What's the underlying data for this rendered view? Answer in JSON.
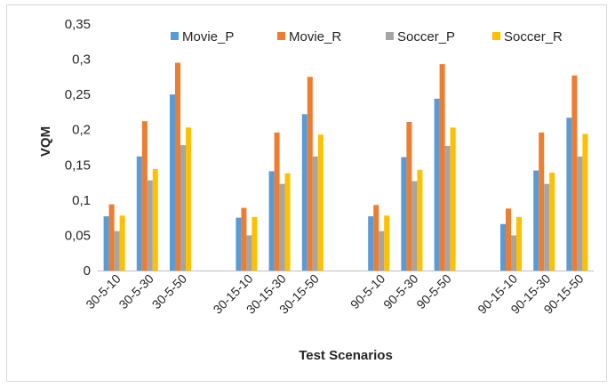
{
  "chart_data": {
    "type": "bar",
    "title": "",
    "xlabel": "Test Scenarios",
    "ylabel": "VQM",
    "ylim": [
      0,
      0.35
    ],
    "yticks": [
      "0",
      "0,05",
      "0,1",
      "0,15",
      "0,2",
      "0,25",
      "0,3",
      "0,35"
    ],
    "grid": false,
    "legend_position": "top",
    "groups": [
      {
        "categories": [
          "30-5-10",
          "30-5-30",
          "30-5-50"
        ]
      },
      {
        "categories": [
          "30-15-10",
          "30-15-30",
          "30-15-50"
        ]
      },
      {
        "categories": [
          "90-5-10",
          "90-5-30",
          "90-5-50"
        ]
      },
      {
        "categories": [
          "90-15-10",
          "90-15-30",
          "90-15-50"
        ]
      }
    ],
    "categories": [
      "30-5-10",
      "30-5-30",
      "30-5-50",
      "30-15-10",
      "30-15-30",
      "30-15-50",
      "90-5-10",
      "90-5-30",
      "90-5-50",
      "90-15-10",
      "90-15-30",
      "90-15-50"
    ],
    "series": [
      {
        "name": "Movie_P",
        "color": "#5b9bd5",
        "values": [
          0.077,
          0.162,
          0.25,
          0.075,
          0.141,
          0.222,
          0.077,
          0.161,
          0.244,
          0.066,
          0.142,
          0.217
        ]
      },
      {
        "name": "Movie_R",
        "color": "#ed7d31",
        "values": [
          0.094,
          0.212,
          0.295,
          0.089,
          0.196,
          0.275,
          0.093,
          0.211,
          0.293,
          0.088,
          0.196,
          0.277
        ]
      },
      {
        "name": "Soccer_P",
        "color": "#a5a5a5",
        "values": [
          0.056,
          0.128,
          0.178,
          0.05,
          0.123,
          0.162,
          0.056,
          0.127,
          0.177,
          0.05,
          0.123,
          0.162
        ]
      },
      {
        "name": "Soccer_R",
        "color": "#ffc000",
        "values": [
          0.078,
          0.144,
          0.203,
          0.076,
          0.138,
          0.193,
          0.078,
          0.143,
          0.203,
          0.076,
          0.139,
          0.194
        ]
      }
    ]
  }
}
